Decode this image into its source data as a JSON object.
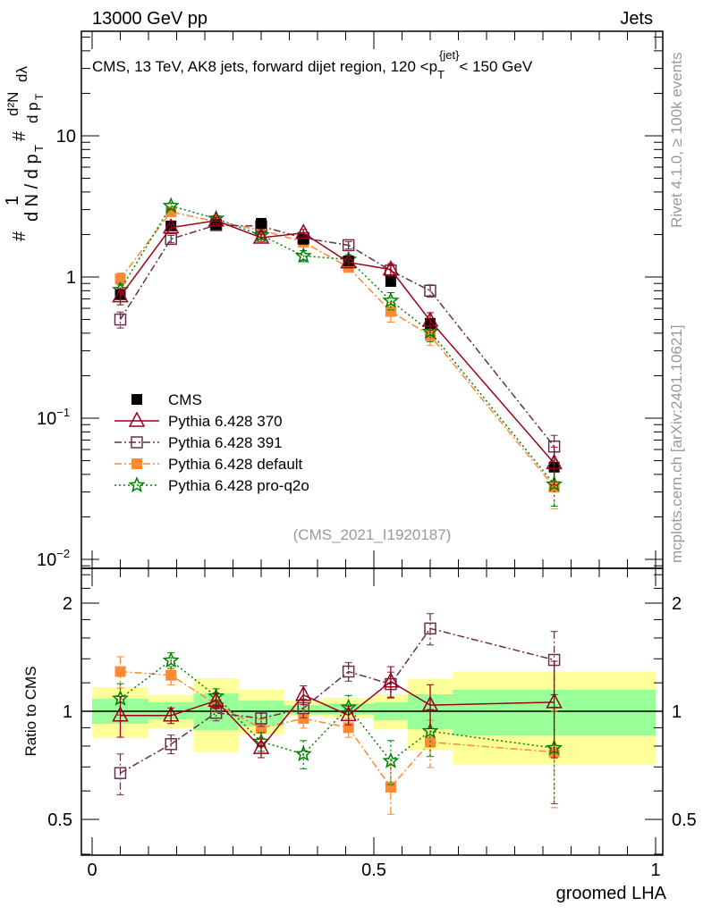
{
  "header": {
    "left": "13000 GeV pp",
    "right": "Jets"
  },
  "side_text": {
    "rivet": "Rivet 4.1.0, ≥ 100k events",
    "mcplots": "mcplots.cern.ch [arXiv:2401.10621]"
  },
  "analysis_id": "(CMS_2021_I1920187)",
  "colors": {
    "band_yellow": "#ffff99",
    "band_green": "#99ff99"
  },
  "chart_data": [
    {
      "type": "line",
      "title": "CMS, 13 TeV, AK8 jets, forward dijet region, 120 <p_T^{jet}< 150 GeV",
      "title_parts": {
        "pre": "CMS, 13 TeV, AK8 jets, forward dijet region, 120 <p",
        "sub": "T",
        "sup": "{jet}",
        "post": "< 150 GeV"
      },
      "ylabel_parts": {
        "a": "#",
        "b": "1",
        "c": "d N / d p",
        "d": "T",
        "e": "#",
        "f": "d²N",
        "g": "d p",
        "h": "T",
        "i": "dλ"
      },
      "yscale": "log",
      "ylim": [
        0.008,
        55
      ],
      "xlim": [
        -0.02,
        1.01
      ],
      "ytick_labels": [
        {
          "v": 10,
          "t": "10"
        },
        {
          "v": 1,
          "t": "1"
        },
        {
          "v": 0.1,
          "t": "10",
          "e": "−1"
        },
        {
          "v": 0.01,
          "t": "10",
          "e": "−2"
        }
      ],
      "x": [
        0.05,
        0.14,
        0.22,
        0.3,
        0.375,
        0.455,
        0.53,
        0.6,
        0.82
      ],
      "bin_edges": [
        0,
        0.1,
        0.18,
        0.26,
        0.34,
        0.41,
        0.5,
        0.56,
        0.64,
        1.0
      ],
      "legend_position": "lower-left",
      "series": [
        {
          "name": "CMS",
          "color": "#000000",
          "marker": "filled-square",
          "line": "none",
          "values": [
            0.75,
            2.3,
            2.35,
            2.4,
            1.85,
            1.3,
            0.93,
            0.47,
            0.045
          ]
        },
        {
          "name": "Pythia 6.428 370",
          "color": "#99001a",
          "marker": "open-triangle",
          "line": "solid",
          "values": [
            0.73,
            2.24,
            2.51,
            1.9,
            2.05,
            1.27,
            1.13,
            0.49,
            0.048
          ],
          "rel_err": [
            0.13,
            0.05,
            0.05,
            0.06,
            0.06,
            0.06,
            0.1,
            0.14,
            0.3
          ]
        },
        {
          "name": "Pythia 6.428 391",
          "color": "#6b2e4a",
          "marker": "open-square",
          "line": "dashdot",
          "values": [
            0.5,
            1.86,
            2.33,
            2.29,
            1.89,
            1.68,
            1.11,
            0.8,
            0.063
          ],
          "rel_err": [
            0.13,
            0.06,
            0.05,
            0.05,
            0.06,
            0.06,
            0.08,
            0.1,
            0.2
          ]
        },
        {
          "name": "Pythia 6.428 default",
          "color": "#ff8833",
          "marker": "filled-square",
          "line": "dashdot",
          "values": [
            0.97,
            2.9,
            2.46,
            2.15,
            1.77,
            1.17,
            0.57,
            0.385,
            0.0325
          ],
          "rel_err": [
            0.1,
            0.06,
            0.05,
            0.06,
            0.06,
            0.06,
            0.16,
            0.15,
            0.3
          ]
        },
        {
          "name": "Pythia 6.428 pro-q2o",
          "color": "#008000",
          "marker": "star",
          "line": "dotted",
          "values": [
            0.81,
            3.19,
            2.59,
            1.98,
            1.41,
            1.33,
            0.68,
            0.41,
            0.034
          ],
          "rel_err": [
            0.1,
            0.05,
            0.05,
            0.06,
            0.09,
            0.08,
            0.14,
            0.15,
            0.3
          ]
        }
      ]
    },
    {
      "type": "line",
      "ylabel": "Ratio to CMS",
      "xlabel": "groomed LHA",
      "yscale": "log",
      "ylim": [
        0.4,
        2.5
      ],
      "ytick_labels": [
        {
          "v": 2,
          "t": "2"
        },
        {
          "v": 1,
          "t": "1"
        },
        {
          "v": 0.5,
          "t": "0.5"
        }
      ],
      "xtick_labels": [
        {
          "v": 0,
          "t": "0"
        },
        {
          "v": 0.5,
          "t": "0.5"
        },
        {
          "v": 1,
          "t": "1"
        }
      ],
      "band_yellow": {
        "up": [
          1.167,
          1.11,
          1.236,
          1.147,
          1.07,
          1.09,
          1.115,
          1.23,
          1.29
        ],
        "down": [
          0.842,
          0.897,
          0.77,
          0.862,
          0.966,
          0.955,
          0.89,
          0.78,
          0.71
        ]
      },
      "band_green": {
        "up": [
          1.083,
          1.06,
          1.12,
          1.07,
          1.04,
          1.05,
          1.06,
          1.115,
          1.147
        ],
        "down": [
          0.923,
          0.95,
          0.886,
          0.91,
          0.98,
          0.98,
          0.944,
          0.89,
          0.857
        ]
      },
      "series": [
        {
          "name": "Pythia 6.428 370",
          "values": [
            0.973,
            0.973,
            1.07,
            0.79,
            1.11,
            0.975,
            1.21,
            1.04,
            1.06
          ]
        },
        {
          "name": "Pythia 6.428 391",
          "values": [
            0.673,
            0.81,
            0.99,
            0.955,
            1.02,
            1.29,
            1.19,
            1.7,
            1.39
          ]
        },
        {
          "name": "Pythia 6.428 default",
          "values": [
            1.29,
            1.26,
            1.046,
            0.897,
            0.955,
            0.9,
            0.615,
            0.82,
            0.77
          ]
        },
        {
          "name": "Pythia 6.428 pro-q2o",
          "values": [
            1.085,
            1.385,
            1.1,
            0.823,
            0.76,
            1.025,
            0.727,
            0.88,
            0.79
          ]
        }
      ]
    }
  ]
}
